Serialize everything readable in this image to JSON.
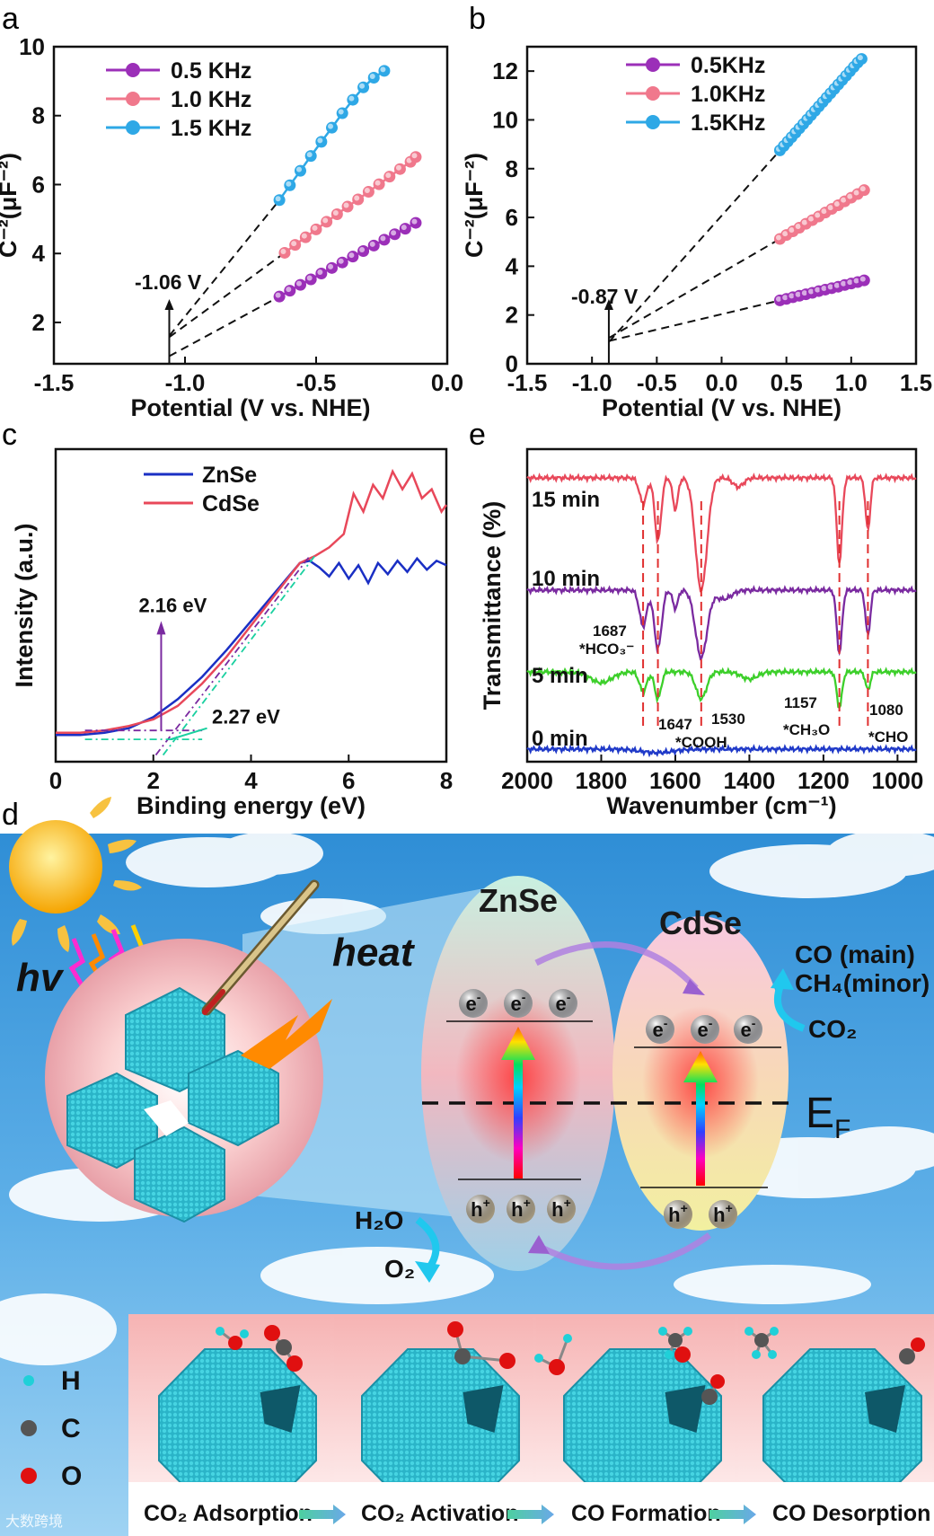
{
  "panels": {
    "a": "a",
    "b": "b",
    "c": "c",
    "d": "d",
    "e": "e"
  },
  "chart_data": [
    {
      "panel": "a",
      "type": "line",
      "xlabel": "Potential (V vs. NHE)",
      "ylabel": "C⁻²(μF⁻²)",
      "xlim": [
        -1.5,
        0.0
      ],
      "ylim": [
        0.8,
        10
      ],
      "xticks": [
        -1.5,
        -1.0,
        -0.5,
        0.0
      ],
      "xtick_labels": [
        "-1.5",
        "-1.0",
        "-0.5",
        "0.0"
      ],
      "yticks": [
        2,
        4,
        6,
        8,
        10
      ],
      "ytick_labels": [
        "2",
        "4",
        "6",
        "8",
        "10"
      ],
      "annotation": "-1.06 V",
      "intercept": -1.06,
      "series": [
        {
          "name": "0.5 KHz",
          "color": "#9b2fb8",
          "x": [
            -0.64,
            -0.6,
            -0.56,
            -0.52,
            -0.48,
            -0.44,
            -0.4,
            -0.36,
            -0.32,
            -0.28,
            -0.24,
            -0.2,
            -0.16,
            -0.12
          ],
          "y": [
            2.75,
            2.92,
            3.09,
            3.25,
            3.42,
            3.58,
            3.74,
            3.91,
            4.07,
            4.23,
            4.4,
            4.56,
            4.72,
            4.89
          ]
        },
        {
          "name": "1.0 KHz",
          "color": "#f0788c",
          "x": [
            -0.62,
            -0.58,
            -0.54,
            -0.5,
            -0.46,
            -0.42,
            -0.38,
            -0.34,
            -0.3,
            -0.26,
            -0.22,
            -0.18,
            -0.14,
            -0.12
          ],
          "y": [
            4.02,
            4.25,
            4.47,
            4.7,
            4.92,
            5.14,
            5.36,
            5.57,
            5.79,
            6.01,
            6.23,
            6.45,
            6.66,
            6.8
          ]
        },
        {
          "name": "1.5 KHz",
          "color": "#2ea8e6",
          "x": [
            -0.64,
            -0.6,
            -0.56,
            -0.52,
            -0.48,
            -0.44,
            -0.4,
            -0.36,
            -0.32,
            -0.28,
            -0.24
          ],
          "y": [
            5.55,
            5.98,
            6.4,
            6.83,
            7.24,
            7.65,
            8.07,
            8.46,
            8.82,
            9.1,
            9.3
          ]
        }
      ]
    },
    {
      "panel": "b",
      "type": "line",
      "xlabel": "Potential (V vs. NHE)",
      "ylabel": "C⁻²(μF⁻²)",
      "xlim": [
        -1.5,
        1.5
      ],
      "ylim": [
        0,
        13
      ],
      "xticks": [
        -1.5,
        -1.0,
        -0.5,
        0.0,
        0.5,
        1.0,
        1.5
      ],
      "xtick_labels": [
        "-1.5",
        "-1.0",
        "-0.5",
        "0.0",
        "0.5",
        "1.0",
        "1.5"
      ],
      "yticks": [
        0,
        2,
        4,
        6,
        8,
        10,
        12
      ],
      "ytick_labels": [
        "0",
        "2",
        "4",
        "6",
        "8",
        "10",
        "12"
      ],
      "annotation": "-0.87 V",
      "intercept": -0.87,
      "series": [
        {
          "name": "0.5KHz",
          "color": "#9b2fb8",
          "x": [
            0.45,
            0.5,
            0.55,
            0.6,
            0.65,
            0.7,
            0.75,
            0.8,
            0.85,
            0.9,
            0.95,
            1.0,
            1.05,
            1.1
          ],
          "y": [
            2.6,
            2.66,
            2.73,
            2.79,
            2.85,
            2.91,
            2.98,
            3.04,
            3.1,
            3.16,
            3.23,
            3.29,
            3.35,
            3.42
          ]
        },
        {
          "name": "1.0KHz",
          "color": "#f0788c",
          "x": [
            0.45,
            0.5,
            0.55,
            0.6,
            0.65,
            0.7,
            0.75,
            0.8,
            0.85,
            0.9,
            0.95,
            1.0,
            1.05,
            1.1
          ],
          "y": [
            5.12,
            5.28,
            5.43,
            5.58,
            5.74,
            5.89,
            6.04,
            6.2,
            6.35,
            6.5,
            6.66,
            6.81,
            6.96,
            7.12
          ]
        },
        {
          "name": "1.5KHz",
          "color": "#2ea8e6",
          "x": [
            0.45,
            0.48,
            0.51,
            0.54,
            0.57,
            0.6,
            0.63,
            0.66,
            0.69,
            0.72,
            0.75,
            0.78,
            0.81,
            0.84,
            0.87,
            0.9,
            0.93,
            0.96,
            0.99,
            1.02,
            1.05,
            1.08
          ],
          "y": [
            8.75,
            8.93,
            9.11,
            9.29,
            9.47,
            9.65,
            9.83,
            10.01,
            10.19,
            10.37,
            10.55,
            10.73,
            10.91,
            11.09,
            11.27,
            11.45,
            11.63,
            11.81,
            11.99,
            12.17,
            12.35,
            12.5
          ]
        }
      ]
    },
    {
      "panel": "c",
      "type": "line",
      "xlabel": "Binding energy (eV)",
      "ylabel": "Intensity (a.u.)",
      "xlim": [
        0,
        8
      ],
      "xticks": [
        0,
        2,
        4,
        6,
        8
      ],
      "xtick_labels": [
        "0",
        "2",
        "4",
        "6",
        "8"
      ],
      "annotations": [
        "2.16 eV",
        "2.27 eV"
      ],
      "series": [
        {
          "name": "ZnSe",
          "color": "#1a2fc4",
          "x": [
            0,
            0.5,
            1,
            1.5,
            2,
            2.5,
            3,
            3.5,
            4,
            4.5,
            5,
            5.2,
            5.4,
            5.6,
            5.8,
            6,
            6.2,
            6.4,
            6.6,
            6.8,
            7,
            7.2,
            7.4,
            7.6,
            7.8,
            8
          ],
          "y": [
            0.02,
            0.02,
            0.03,
            0.05,
            0.1,
            0.18,
            0.28,
            0.4,
            0.53,
            0.66,
            0.79,
            0.8,
            0.77,
            0.73,
            0.79,
            0.72,
            0.78,
            0.7,
            0.79,
            0.74,
            0.8,
            0.75,
            0.81,
            0.76,
            0.8,
            0.78
          ]
        },
        {
          "name": "CdSe",
          "color": "#e8485a",
          "x": [
            0,
            0.5,
            1,
            1.5,
            2,
            2.5,
            3,
            3.5,
            4,
            4.5,
            5,
            5.3,
            5.6,
            5.9,
            6.1,
            6.3,
            6.5,
            6.7,
            6.9,
            7.1,
            7.3,
            7.5,
            7.7,
            7.9,
            8
          ],
          "y": [
            0.03,
            0.03,
            0.04,
            0.06,
            0.09,
            0.15,
            0.25,
            0.37,
            0.51,
            0.65,
            0.79,
            0.82,
            0.86,
            0.92,
            1.1,
            1.02,
            1.14,
            1.08,
            1.2,
            1.12,
            1.19,
            1.08,
            1.12,
            1.02,
            1.05
          ]
        }
      ]
    },
    {
      "panel": "e",
      "type": "line",
      "xlabel": "Wavenumber (cm⁻¹)",
      "ylabel": "Transmittance (%)",
      "xlim": [
        2000,
        950
      ],
      "xticks": [
        2000,
        1800,
        1600,
        1400,
        1200,
        1000
      ],
      "xtick_labels": [
        "2000",
        "1800",
        "1600",
        "1400",
        "1200",
        "1000"
      ],
      "series": [
        {
          "name": "15 min",
          "color": "#e8485a"
        },
        {
          "name": "10 min",
          "color": "#7a2aa0"
        },
        {
          "name": "5 min",
          "color": "#3ccf2a"
        },
        {
          "name": "0 min",
          "color": "#1f39c8"
        }
      ],
      "peaks": [
        {
          "label": "1687",
          "assign": "*HCO₃⁻",
          "x": 1687
        },
        {
          "label": "1647",
          "assign": "*COOH",
          "x": 1647
        },
        {
          "label": "1530",
          "assign": "",
          "x": 1530
        },
        {
          "label": "1157",
          "assign": "*CH₃O",
          "x": 1157
        },
        {
          "label": "1080",
          "assign": "*CHO",
          "x": 1080
        }
      ]
    }
  ],
  "scheme": {
    "hv": "hv",
    "heat": "heat",
    "znse": "ZnSe",
    "cdse": "CdSe",
    "ef": "E",
    "ef_sub": "F",
    "electron": "e",
    "hole": "h",
    "products": [
      "CO (main)",
      "CH₄(minor)",
      "CO₂"
    ],
    "water": [
      "H₂O",
      "O₂"
    ],
    "legend": [
      "H",
      "C",
      "O"
    ],
    "steps": [
      "CO₂ Adsorption",
      "CO₂ Activation",
      "CO Formation",
      "CO Desorption"
    ]
  },
  "watermark": "大数跨境"
}
